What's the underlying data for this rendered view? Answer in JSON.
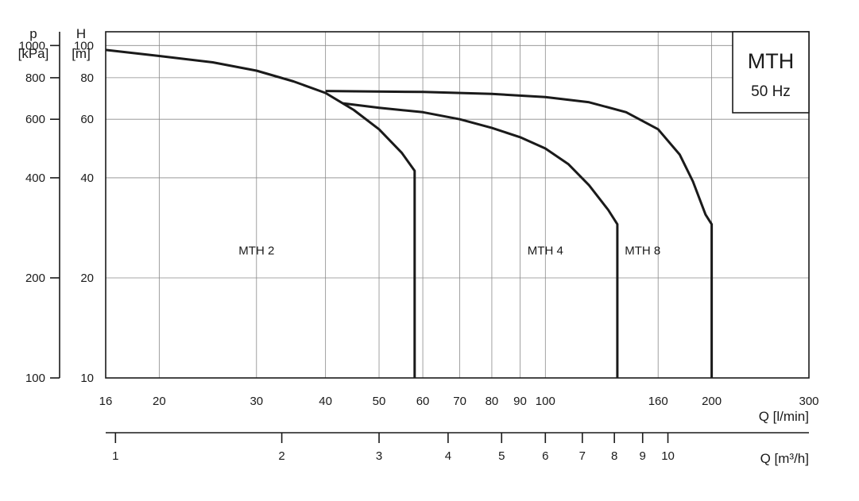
{
  "chart_data": {
    "type": "line",
    "title": "MTH",
    "subtitle": "50 Hz",
    "x_scale": "log",
    "y_scale": "log",
    "grid": true,
    "xlabel": "Q [l/min]",
    "xlim": [
      16,
      300
    ],
    "x_ticks": [
      16,
      20,
      30,
      40,
      50,
      60,
      70,
      80,
      90,
      100,
      160,
      200,
      300
    ],
    "x2label": "Q [m³/h]",
    "x2_ticks": [
      1,
      2,
      3,
      4,
      5,
      6,
      7,
      8,
      9,
      10
    ],
    "ylabel_line1": "H",
    "ylabel_line2": "[m]",
    "ylim": [
      10,
      110
    ],
    "y_ticks": [
      10,
      20,
      40,
      60,
      80,
      100
    ],
    "y2label_line1": "p",
    "y2label_line2": "[kPa]",
    "y2_ticks": [
      100,
      200,
      400,
      600,
      800,
      1000
    ],
    "series": [
      {
        "name": "MTH 2",
        "label_at": [
          30,
          23.5
        ],
        "points": [
          [
            16,
            97
          ],
          [
            20,
            93
          ],
          [
            25,
            89
          ],
          [
            30,
            84
          ],
          [
            35,
            78
          ],
          [
            40,
            72
          ],
          [
            45,
            64
          ],
          [
            50,
            56
          ],
          [
            55,
            47.5
          ],
          [
            58,
            42
          ],
          [
            58,
            10
          ]
        ]
      },
      {
        "name": "MTH 4",
        "label_at": [
          100,
          23.5
        ],
        "points": [
          [
            43,
            67
          ],
          [
            50,
            65
          ],
          [
            60,
            63
          ],
          [
            70,
            60
          ],
          [
            80,
            56.5
          ],
          [
            90,
            53
          ],
          [
            100,
            49
          ],
          [
            110,
            44
          ],
          [
            120,
            38
          ],
          [
            130,
            32
          ],
          [
            135,
            29
          ],
          [
            135,
            10
          ]
        ]
      },
      {
        "name": "MTH 8",
        "label_at": [
          150,
          23.5
        ],
        "points": [
          [
            40,
            73
          ],
          [
            60,
            72.5
          ],
          [
            80,
            71.5
          ],
          [
            100,
            70
          ],
          [
            120,
            67.5
          ],
          [
            140,
            63
          ],
          [
            160,
            56
          ],
          [
            175,
            47
          ],
          [
            185,
            39
          ],
          [
            195,
            31
          ],
          [
            200,
            29
          ],
          [
            200,
            10
          ]
        ]
      }
    ]
  }
}
